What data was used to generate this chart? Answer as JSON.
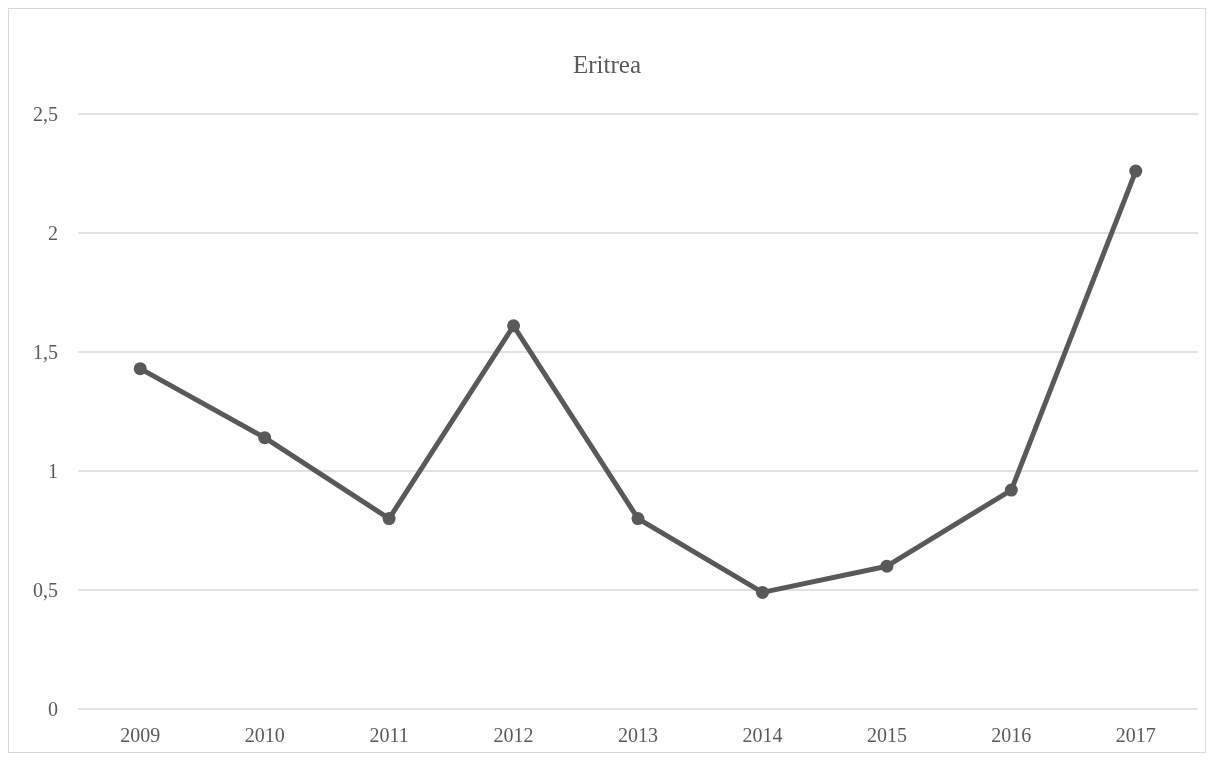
{
  "chart_data": {
    "type": "line",
    "title": "Eritrea",
    "categories": [
      "2009",
      "2010",
      "2011",
      "2012",
      "2013",
      "2014",
      "2015",
      "2016",
      "2017"
    ],
    "series": [
      {
        "color": "#595959",
        "values": [
          1.43,
          1.14,
          0.8,
          1.61,
          0.8,
          0.49,
          0.6,
          0.92,
          2.26
        ]
      }
    ],
    "ylim": [
      0,
      2.5
    ],
    "yticks": [
      {
        "value": 0,
        "label": "0"
      },
      {
        "value": 0.5,
        "label": "0,5"
      },
      {
        "value": 1,
        "label": "1"
      },
      {
        "value": 1.5,
        "label": "1,5"
      },
      {
        "value": 2,
        "label": "2"
      },
      {
        "value": 2.5,
        "label": "2,5"
      }
    ],
    "grid": "y",
    "marker": "circle",
    "line_style": "solid"
  }
}
